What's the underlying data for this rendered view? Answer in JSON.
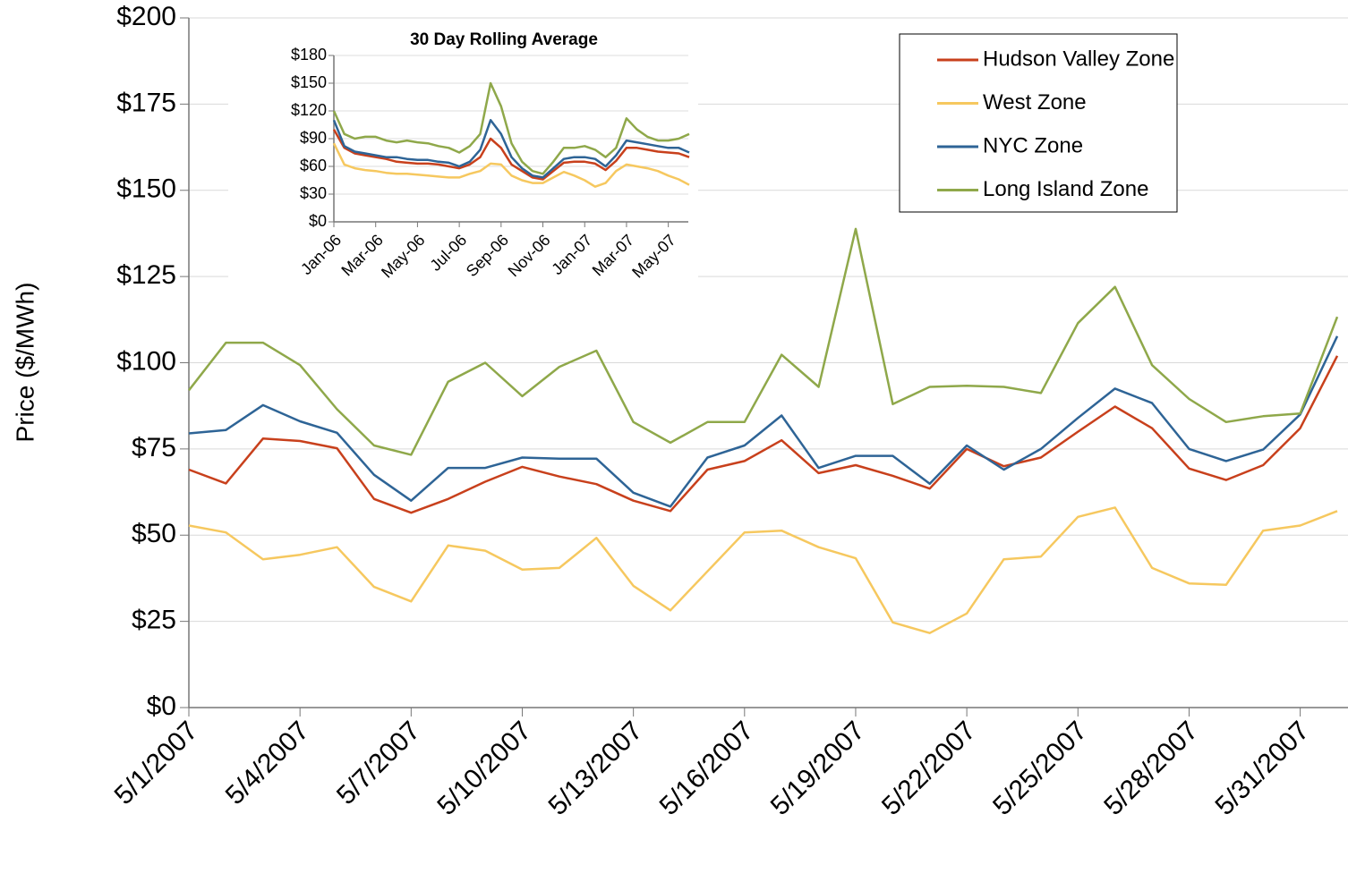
{
  "chart_data": [
    {
      "type": "line",
      "y_label": "Price ($/MWh)",
      "categories": [
        "5/1/2007",
        null,
        null,
        "5/4/2007",
        null,
        null,
        "5/7/2007",
        null,
        null,
        "5/10/2007",
        null,
        null,
        "5/13/2007",
        null,
        null,
        "5/16/2007",
        null,
        null,
        "5/19/2007",
        null,
        null,
        "5/22/2007",
        null,
        null,
        "5/25/2007",
        null,
        null,
        "5/28/2007",
        null,
        null,
        "5/31/2007",
        null
      ],
      "series": [
        {
          "name": "Hudson Valley Zone",
          "color": "#c8401c",
          "values": [
            69,
            65,
            78,
            77.3,
            75.2,
            60.5,
            56.5,
            60.5,
            65.5,
            69.8,
            67,
            64.8,
            60,
            57,
            69,
            71.5,
            77.5,
            68,
            70.3,
            67.2,
            63.5,
            75,
            70,
            72.5,
            80,
            87.3,
            81,
            69.3,
            66,
            70.3,
            81,
            102
          ]
        },
        {
          "name": "West Zone",
          "color": "#f6c85f",
          "values": [
            52.8,
            50.8,
            43,
            44.3,
            46.5,
            35,
            30.8,
            47,
            45.5,
            40,
            40.5,
            49.2,
            35.3,
            28.2,
            39.5,
            50.8,
            51.3,
            46.5,
            43.3,
            24.7,
            21.6,
            27.3,
            43,
            43.8,
            55.3,
            58,
            40.5,
            36,
            35.6,
            51.3,
            52.8,
            57
          ]
        },
        {
          "name": "NYC Zone",
          "color": "#2e6496",
          "values": [
            79.5,
            80.5,
            87.7,
            83,
            79.7,
            67.5,
            60,
            69.5,
            69.5,
            72.5,
            72.2,
            72.2,
            62.3,
            58.3,
            72.5,
            76,
            84.7,
            69.5,
            73,
            73,
            64.9,
            76,
            69,
            75,
            84,
            92.5,
            88.3,
            75,
            71.5,
            74.8,
            85,
            107.7
          ]
        },
        {
          "name": "Long Island Zone",
          "color": "#8fa84a",
          "values": [
            92,
            105.8,
            105.8,
            99.3,
            86.5,
            76,
            73.3,
            94.5,
            100,
            90.3,
            98.8,
            103.5,
            82.8,
            76.8,
            82.8,
            82.8,
            102.3,
            93,
            138.8,
            88,
            93,
            93.3,
            93,
            91.2,
            111.5,
            122,
            99.3,
            89.5,
            82.8,
            84.5,
            85.3,
            113.3
          ]
        }
      ],
      "ylim": [
        0,
        200
      ],
      "yticks": [
        {
          "value": 0,
          "label": "$0"
        },
        {
          "value": 25,
          "label": "$25"
        },
        {
          "value": 50,
          "label": "$50"
        },
        {
          "value": 75,
          "label": "$75"
        },
        {
          "value": 100,
          "label": "$100"
        },
        {
          "value": 125,
          "label": "$125"
        },
        {
          "value": 150,
          "label": "$150"
        },
        {
          "value": 175,
          "label": "$175"
        },
        {
          "value": 200,
          "label": "$200"
        }
      ],
      "grid": true,
      "legend": "top-right"
    },
    {
      "type": "line",
      "title": "30 Day Rolling Average",
      "categories": [
        "Jan-06",
        null,
        null,
        null,
        "Mar-06",
        null,
        null,
        null,
        "May-06",
        null,
        null,
        null,
        "Jul-06",
        null,
        null,
        null,
        "Sep-06",
        null,
        null,
        null,
        "Nov-06",
        null,
        null,
        null,
        "Jan-07",
        null,
        null,
        null,
        "Mar-07",
        null,
        null,
        null,
        "May-07",
        null,
        null
      ],
      "series": [
        {
          "color": "#c8401c",
          "values": [
            100,
            80,
            74,
            72,
            70,
            68,
            65,
            64,
            63,
            63,
            62,
            60,
            58,
            62,
            70,
            90,
            80,
            62,
            55,
            48,
            46,
            55,
            64,
            65,
            65,
            63,
            56,
            66,
            80,
            80,
            78,
            76,
            75,
            74,
            70
          ]
        },
        {
          "color": "#f6c85f",
          "values": [
            85,
            62,
            58,
            56,
            55,
            53,
            52,
            52,
            51,
            50,
            49,
            48,
            48,
            52,
            55,
            63,
            62,
            50,
            45,
            42,
            42,
            48,
            54,
            50,
            45,
            38,
            42,
            55,
            62,
            60,
            58,
            55,
            50,
            46,
            40
          ]
        },
        {
          "color": "#2e6496",
          "values": [
            110,
            82,
            76,
            74,
            72,
            70,
            70,
            68,
            67,
            67,
            65,
            64,
            60,
            65,
            78,
            110,
            95,
            70,
            58,
            50,
            48,
            58,
            68,
            70,
            70,
            68,
            60,
            72,
            88,
            86,
            84,
            82,
            80,
            80,
            75
          ]
        },
        {
          "color": "#8fa84a",
          "values": [
            120,
            95,
            90,
            92,
            92,
            88,
            86,
            88,
            86,
            85,
            82,
            80,
            75,
            82,
            95,
            150,
            125,
            85,
            65,
            55,
            52,
            65,
            80,
            80,
            82,
            78,
            70,
            80,
            112,
            100,
            92,
            88,
            88,
            90,
            95
          ]
        }
      ],
      "ylim": [
        0,
        180
      ],
      "yticks": [
        {
          "value": 0,
          "label": "$0"
        },
        {
          "value": 30,
          "label": "$30"
        },
        {
          "value": 60,
          "label": "$60"
        },
        {
          "value": 90,
          "label": "$90"
        },
        {
          "value": 120,
          "label": "$120"
        },
        {
          "value": 150,
          "label": "$150"
        },
        {
          "value": 180,
          "label": "$180"
        }
      ],
      "grid": true
    }
  ]
}
